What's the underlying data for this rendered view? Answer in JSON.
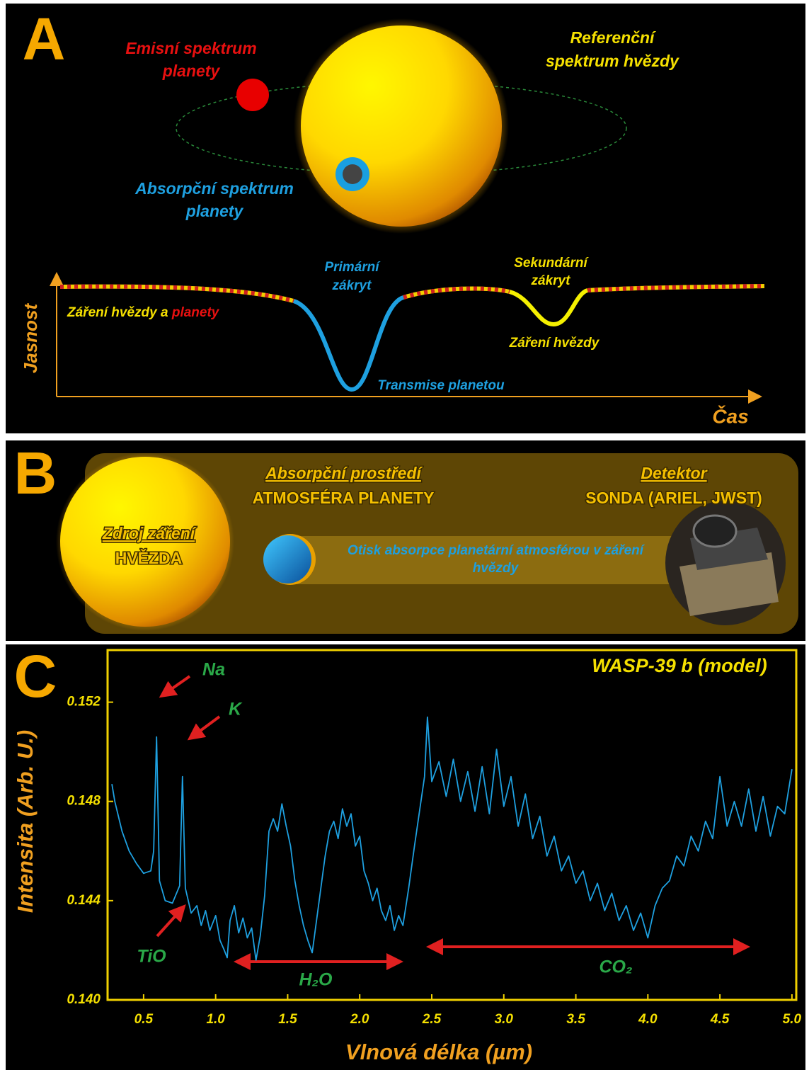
{
  "panel_a": {
    "letter": "A",
    "emission": [
      "Emisní spektrum",
      "planety"
    ],
    "reference": [
      "Referenční",
      "spektrum hvězdy"
    ],
    "absorption": [
      "Absorpční spektrum",
      "planety"
    ],
    "primary": [
      "Primární",
      "zákryt"
    ],
    "secondary": [
      "Sekundární",
      "zákryt"
    ],
    "star_planet": [
      "Záření hvězdy a",
      "planety"
    ],
    "transmission": "Transmise planetou",
    "star_only": "Záření hvězdy",
    "y_label": "Jasnost",
    "x_label": "Čas"
  },
  "panel_b": {
    "letter": "B",
    "source": [
      "Zdroj záření",
      "HVĚZDA"
    ],
    "medium": [
      "Absorpční prostředí",
      "ATMOSFÉRA PLANETY"
    ],
    "detector": [
      "Detektor",
      "SONDA (ARIEL, JWST)"
    ],
    "imprint": [
      "Otisk absorpce planetární atmosférou v záření",
      "hvězdy"
    ]
  },
  "chart_data": {
    "type": "line",
    "letter": "C",
    "title": "WASP-39 b (model)",
    "x_label": "Vlnová délka (µm)",
    "y_label": "Intensita (Arb. U.)",
    "annotations": [
      "Na",
      "K",
      "TiO",
      "H₂O",
      "CO₂"
    ],
    "color": "#1ea0e0",
    "xlim": [
      0.25,
      5.03
    ],
    "ylim": [
      0.14,
      0.1541
    ],
    "xticks": [
      0.5,
      {
        "value": 1,
        "label": "1.0"
      },
      1.5,
      {
        "value": 2,
        "label": "2.0"
      },
      2.5,
      {
        "value": 3,
        "label": "3.0"
      },
      3.5,
      {
        "value": 4,
        "label": "4.0"
      },
      4.5,
      {
        "value": 5,
        "label": "5.0"
      }
    ],
    "yticks": [
      {
        "value": 0.14,
        "label": "0.140"
      },
      0.144,
      0.148,
      0.152
    ],
    "x": [
      0.28,
      0.3,
      0.35,
      0.4,
      0.45,
      0.5,
      0.55,
      0.57,
      0.59,
      0.61,
      0.65,
      0.7,
      0.75,
      0.77,
      0.79,
      0.83,
      0.87,
      0.9,
      0.93,
      0.96,
      1.0,
      1.03,
      1.06,
      1.08,
      1.1,
      1.13,
      1.16,
      1.19,
      1.22,
      1.25,
      1.28,
      1.31,
      1.34,
      1.37,
      1.4,
      1.43,
      1.46,
      1.49,
      1.52,
      1.55,
      1.58,
      1.61,
      1.64,
      1.67,
      1.7,
      1.73,
      1.76,
      1.79,
      1.82,
      1.85,
      1.88,
      1.91,
      1.94,
      1.97,
      2.0,
      2.03,
      2.06,
      2.09,
      2.12,
      2.15,
      2.18,
      2.21,
      2.24,
      2.27,
      2.3,
      2.34,
      2.38,
      2.42,
      2.45,
      2.47,
      2.5,
      2.55,
      2.6,
      2.65,
      2.7,
      2.75,
      2.8,
      2.85,
      2.9,
      2.95,
      3.0,
      3.05,
      3.1,
      3.15,
      3.2,
      3.25,
      3.3,
      3.35,
      3.4,
      3.45,
      3.5,
      3.55,
      3.6,
      3.65,
      3.7,
      3.75,
      3.8,
      3.85,
      3.9,
      3.95,
      4.0,
      4.05,
      4.1,
      4.15,
      4.2,
      4.25,
      4.3,
      4.35,
      4.4,
      4.45,
      4.5,
      4.55,
      4.6,
      4.65,
      4.7,
      4.75,
      4.8,
      4.85,
      4.9,
      4.95,
      5.0
    ],
    "values": [
      0.1487,
      0.148,
      0.1468,
      0.146,
      0.1455,
      0.1451,
      0.1452,
      0.146,
      0.1506,
      0.1448,
      0.144,
      0.1439,
      0.1446,
      0.149,
      0.1445,
      0.1435,
      0.1438,
      0.143,
      0.1436,
      0.1428,
      0.1434,
      0.1424,
      0.142,
      0.1417,
      0.1432,
      0.1438,
      0.1427,
      0.1433,
      0.1425,
      0.1429,
      0.1416,
      0.1426,
      0.1442,
      0.1468,
      0.1473,
      0.1468,
      0.1479,
      0.147,
      0.1462,
      0.1448,
      0.1438,
      0.143,
      0.1424,
      0.1419,
      0.1432,
      0.1445,
      0.1458,
      0.1468,
      0.1472,
      0.1465,
      0.1477,
      0.147,
      0.1475,
      0.1462,
      0.1466,
      0.1452,
      0.1447,
      0.144,
      0.1445,
      0.1436,
      0.1432,
      0.1438,
      0.1428,
      0.1434,
      0.143,
      0.1445,
      0.1462,
      0.1478,
      0.149,
      0.1514,
      0.1488,
      0.1496,
      0.1482,
      0.1497,
      0.148,
      0.1492,
      0.1476,
      0.1494,
      0.1475,
      0.1501,
      0.1478,
      0.149,
      0.147,
      0.1483,
      0.1465,
      0.1474,
      0.1458,
      0.1466,
      0.1452,
      0.1458,
      0.1447,
      0.1452,
      0.144,
      0.1447,
      0.1436,
      0.1443,
      0.1432,
      0.1438,
      0.1428,
      0.1435,
      0.1425,
      0.1438,
      0.1445,
      0.1448,
      0.1458,
      0.1454,
      0.1466,
      0.146,
      0.1472,
      0.1465,
      0.149,
      0.147,
      0.148,
      0.147,
      0.1485,
      0.1468,
      0.1482,
      0.1466,
      0.1478,
      0.1475,
      0.1493
    ]
  }
}
